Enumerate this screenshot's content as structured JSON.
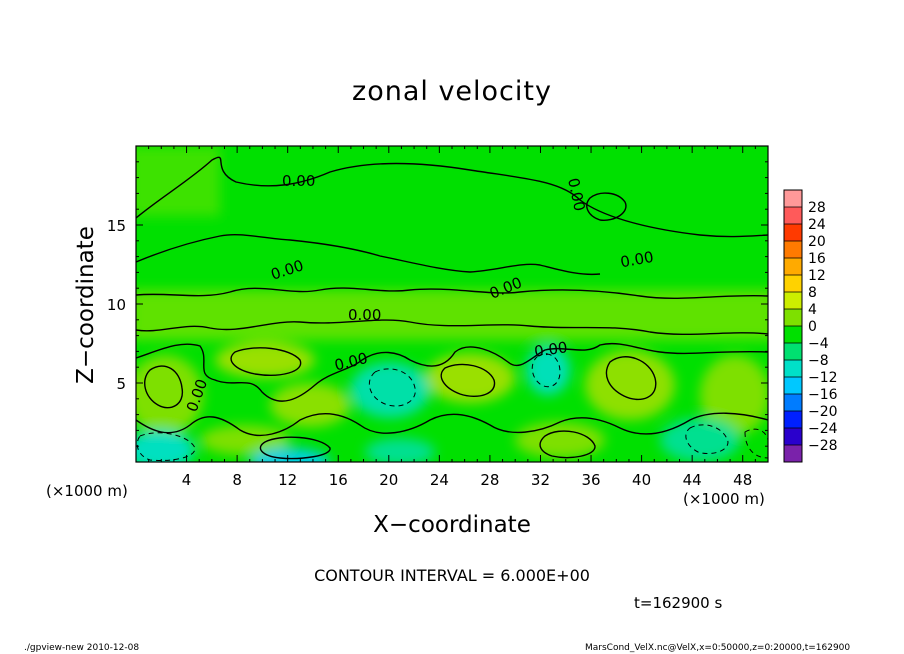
{
  "chart_data": {
    "type": "heatmap",
    "title": "zonal velocity",
    "xlabel": "X−coordinate",
    "ylabel": "Z−coordinate",
    "x_unit_left": "(×1000 m)",
    "x_unit_right": "(×1000 m)",
    "xlim": [
      0,
      50
    ],
    "ylim": [
      0,
      20
    ],
    "x_ticks": [
      4,
      8,
      12,
      16,
      20,
      24,
      28,
      32,
      36,
      40,
      44,
      48
    ],
    "x_tick_labels": [
      "4",
      "8",
      "12",
      "16",
      "20",
      "24",
      "28",
      "32",
      "36",
      "40",
      "44",
      "48"
    ],
    "y_ticks": [
      5,
      10,
      15
    ],
    "y_tick_labels": [
      "5",
      "10",
      "15"
    ],
    "colorbar": {
      "levels": [
        28,
        24,
        20,
        16,
        12,
        8,
        4,
        0,
        -4,
        -8,
        -12,
        -16,
        -20,
        -24,
        -28
      ],
      "labels": [
        "28",
        "24",
        "20",
        "16",
        "12",
        "8",
        "4",
        "0",
        "−4",
        "−8",
        "−12",
        "−16",
        "−20",
        "−24",
        "−28"
      ],
      "colors": [
        "#ff9999",
        "#ff5a5a",
        "#ff3a00",
        "#ff7a00",
        "#ffaa00",
        "#ffd200",
        "#ccee00",
        "#7ee000",
        "#00e000",
        "#00e070",
        "#00e0c8",
        "#00c8ff",
        "#007cff",
        "#0020ff",
        "#2a00cc",
        "#7a22aa"
      ]
    },
    "contour_labels": [
      "0.00",
      "0.00",
      "0.00",
      "0.00",
      "0.00",
      "0.00",
      "0.00",
      "0.00",
      "0.00"
    ],
    "contour_interval": "CONTOUR INTERVAL = 6.000E+00",
    "time_label": "t=162900 s"
  },
  "footer": {
    "left": "./gpview-new   2010-12-08",
    "right": "MarsCond_VelX.nc@VelX,x=0:50000,z=0:20000,t=162900"
  },
  "colors": {
    "field_zero": "#00e000",
    "field_positive": "#7ee000",
    "field_negative": "#00e070"
  }
}
